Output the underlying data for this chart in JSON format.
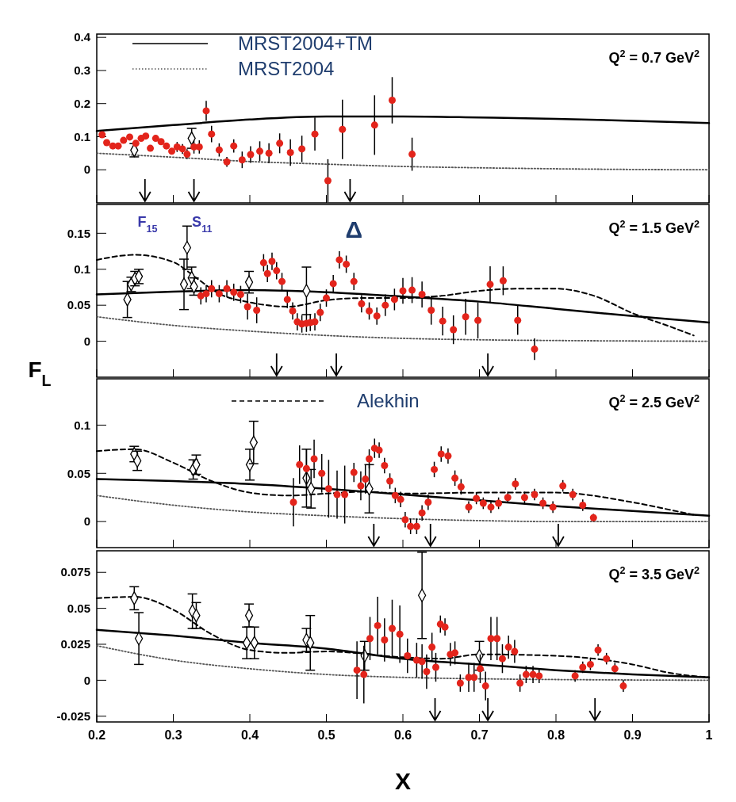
{
  "chart_data": [
    {
      "type": "scatter",
      "ylim": [
        -0.1,
        0.41
      ],
      "yticks": [
        0,
        0.1,
        0.2,
        0.3,
        0.4
      ],
      "xlim": [
        0.2,
        1
      ],
      "xticks": [
        0.2,
        0.3,
        0.4,
        0.5,
        0.6,
        0.7,
        0.8,
        0.9,
        1
      ],
      "tick_labels": "y",
      "legend": "top left",
      "annotations": [
        "Q$^{2}$ = 0.7 GeV$^{2}$"
      ],
      "ref_lines": [
        {
          "axis": "x",
          "value": 0.263
        },
        {
          "axis": "x",
          "value": 0.327
        },
        {
          "axis": "x",
          "value": 0.531
        }
      ],
      "series": [
        {
          "type": "line",
          "name": "MRST2004+TM",
          "color": "#000000",
          "line_style": "solid",
          "x": [
            0.2,
            0.3,
            0.4,
            0.5,
            0.6,
            0.7,
            0.8,
            0.9,
            1
          ],
          "values": [
            0.117,
            0.135,
            0.152,
            0.161,
            0.161,
            0.158,
            0.154,
            0.148,
            0.141
          ]
        },
        {
          "type": "line",
          "name": "MRST2004",
          "color": "#555555",
          "line_style": "dotted",
          "x": [
            0.2,
            0.3,
            0.4,
            0.5,
            0.6,
            0.7,
            0.8,
            0.9,
            1
          ],
          "values": [
            0.05,
            0.038,
            0.025,
            0.017,
            0.01,
            0.006,
            0.003,
            0.001,
            0
          ]
        },
        {
          "type": "scatter",
          "marker": "diamond",
          "color": "#000000",
          "x": [
            0.249,
            0.324
          ],
          "values": [
            0.059,
            0.095
          ],
          "errors": [
            0.02,
            0.03
          ]
        },
        {
          "type": "scatter",
          "marker": "circle",
          "color": "#e3241b",
          "x": [
            0.207,
            0.213,
            0.221,
            0.228,
            0.235,
            0.243,
            0.251,
            0.258,
            0.264,
            0.27,
            0.277,
            0.284,
            0.291,
            0.298,
            0.305,
            0.312,
            0.318,
            0.327,
            0.334,
            0.343,
            0.35,
            0.36,
            0.37,
            0.379,
            0.39,
            0.401,
            0.413,
            0.425,
            0.439,
            0.453,
            0.468,
            0.485,
            0.502,
            0.521,
            0.563,
            0.586,
            0.612
          ],
          "values": [
            0.106,
            0.082,
            0.072,
            0.072,
            0.089,
            0.099,
            0.08,
            0.095,
            0.102,
            0.065,
            0.095,
            0.085,
            0.072,
            0.056,
            0.069,
            0.063,
            0.047,
            0.069,
            0.069,
            0.178,
            0.108,
            0.06,
            0.024,
            0.072,
            0.03,
            0.046,
            0.056,
            0.05,
            0.08,
            0.052,
            0.063,
            0.108,
            -0.033,
            0.122,
            0.135,
            0.21,
            0.047
          ],
          "errors": [
            null,
            null,
            null,
            null,
            null,
            null,
            null,
            null,
            null,
            null,
            null,
            null,
            null,
            null,
            0.015,
            0.015,
            0.015,
            0.02,
            0.02,
            0.03,
            0.025,
            0.02,
            0.015,
            0.02,
            0.025,
            0.025,
            0.03,
            0.03,
            0.03,
            0.04,
            0.04,
            0.05,
            0.065,
            0.09,
            0.09,
            0.07,
            0.05
          ]
        }
      ]
    },
    {
      "type": "scatter",
      "ylim": [
        -0.05,
        0.19
      ],
      "yticks": [
        0,
        0.05,
        0.1,
        0.15
      ],
      "xlim": [
        0.2,
        1
      ],
      "xticks": [
        0.2,
        0.3,
        0.4,
        0.5,
        0.6,
        0.7,
        0.8,
        0.9,
        1
      ],
      "tick_labels": "y",
      "ylabel": "F$_{L}$",
      "annotations": [
        "Q$^{2}$ = 1.5 GeV$^{2}$",
        "F$_{15}$",
        "S$_{11}$",
        "Δ"
      ],
      "ref_lines": [
        {
          "axis": "x",
          "value": 0.435
        },
        {
          "axis": "x",
          "value": 0.513
        },
        {
          "axis": "x",
          "value": 0.711
        }
      ],
      "series": [
        {
          "type": "line",
          "color": "#000000",
          "line_style": "solid",
          "x": [
            0.2,
            0.3,
            0.4,
            0.5,
            0.6,
            0.7,
            0.8,
            0.9,
            1
          ],
          "values": [
            0.065,
            0.069,
            0.071,
            0.068,
            0.062,
            0.055,
            0.045,
            0.035,
            0.026
          ]
        },
        {
          "type": "line",
          "color": "#000000",
          "line_style": "dashed",
          "x": [
            0.2,
            0.25,
            0.3,
            0.33,
            0.36,
            0.4,
            0.45,
            0.5,
            0.55,
            0.6,
            0.65,
            0.7,
            0.75,
            0.8,
            0.85,
            0.9,
            0.95,
            0.98
          ],
          "values": [
            0.113,
            0.12,
            0.11,
            0.088,
            0.066,
            0.054,
            0.048,
            0.057,
            0.06,
            0.06,
            0.063,
            0.07,
            0.073,
            0.073,
            0.063,
            0.039,
            0.02,
            0.008
          ]
        },
        {
          "type": "line",
          "color": "#555555",
          "line_style": "dotted",
          "x": [
            0.2,
            0.3,
            0.4,
            0.5,
            0.6,
            0.7,
            0.8,
            1
          ],
          "values": [
            0.034,
            0.022,
            0.014,
            0.008,
            0.004,
            0.002,
            0.001,
            0
          ]
        },
        {
          "type": "scatter",
          "marker": "diamond",
          "color": "#000000",
          "x": [
            0.24,
            0.245,
            0.25,
            0.255,
            0.314,
            0.318,
            0.324,
            0.327,
            0.399,
            0.474
          ],
          "values": [
            0.058,
            0.079,
            0.087,
            0.09,
            0.079,
            0.13,
            0.088,
            0.076,
            0.082,
            0.07
          ],
          "errors": [
            0.025,
            0.01,
            0.01,
            0.01,
            0.035,
            0.03,
            0.015,
            0.012,
            0.015,
            0.033
          ]
        },
        {
          "type": "scatter",
          "marker": "circle",
          "color": "#e3241b",
          "x": [
            0.336,
            0.343,
            0.35,
            0.36,
            0.37,
            0.379,
            0.388,
            0.397,
            0.409,
            0.418,
            0.423,
            0.429,
            0.435,
            0.442,
            0.449,
            0.456,
            0.462,
            0.468,
            0.474,
            0.479,
            0.485,
            0.492,
            0.5,
            0.509,
            0.517,
            0.526,
            0.536,
            0.546,
            0.556,
            0.566,
            0.577,
            0.589,
            0.6,
            0.612,
            0.625,
            0.637,
            0.652,
            0.666,
            0.682,
            0.698,
            0.714,
            0.731,
            0.75,
            0.772
          ],
          "values": [
            0.063,
            0.066,
            0.073,
            0.066,
            0.073,
            0.068,
            0.065,
            0.048,
            0.043,
            0.109,
            0.094,
            0.111,
            0.098,
            0.083,
            0.058,
            0.042,
            0.027,
            0.024,
            0.025,
            0.026,
            0.027,
            0.04,
            0.06,
            0.08,
            0.113,
            0.107,
            0.083,
            0.052,
            0.042,
            0.035,
            0.05,
            0.058,
            0.07,
            0.071,
            0.065,
            0.043,
            0.028,
            0.016,
            0.034,
            0.029,
            0.079,
            0.084,
            0.029,
            -0.011
          ],
          "errors": [
            0.012,
            0.012,
            0.012,
            0.012,
            0.012,
            0.012,
            0.012,
            0.018,
            0.018,
            0.012,
            0.012,
            0.012,
            0.012,
            0.012,
            0.012,
            0.012,
            0.012,
            0.012,
            0.012,
            0.012,
            0.012,
            0.012,
            0.012,
            0.012,
            0.012,
            0.012,
            0.012,
            0.012,
            0.012,
            0.012,
            0.015,
            0.015,
            0.018,
            0.018,
            0.018,
            0.02,
            0.02,
            0.02,
            0.025,
            0.025,
            0.025,
            0.02,
            0.02,
            0.015
          ]
        }
      ]
    },
    {
      "type": "scatter",
      "ylim": [
        -0.027,
        0.148
      ],
      "yticks": [
        0,
        0.05,
        0.1
      ],
      "xlim": [
        0.2,
        1
      ],
      "xticks": [
        0.2,
        0.3,
        0.4,
        0.5,
        0.6,
        0.7,
        0.8,
        0.9,
        1
      ],
      "tick_labels": "y",
      "legend": "top",
      "annotations": [
        "Q$^{2}$ = 2.5 GeV$^{2}$"
      ],
      "ref_lines": [
        {
          "axis": "x",
          "value": 0.562
        },
        {
          "axis": "x",
          "value": 0.636
        },
        {
          "axis": "x",
          "value": 0.803
        }
      ],
      "series": [
        {
          "type": "line",
          "color": "#000000",
          "line_style": "solid",
          "x": [
            0.2,
            0.3,
            0.4,
            0.5,
            0.6,
            0.7,
            0.8,
            0.9,
            1
          ],
          "values": [
            0.044,
            0.042,
            0.039,
            0.034,
            0.028,
            0.022,
            0.016,
            0.011,
            0.006
          ]
        },
        {
          "type": "line",
          "name": "Alekhin",
          "color": "#000000",
          "line_style": "dashed",
          "x": [
            0.2,
            0.25,
            0.3,
            0.35,
            0.4,
            0.45,
            0.5,
            0.55,
            0.6,
            0.7,
            0.8,
            0.9,
            0.95,
            0.98
          ],
          "values": [
            0.073,
            0.075,
            0.061,
            0.042,
            0.03,
            0.027,
            0.029,
            0.031,
            0.029,
            0.03,
            0.03,
            0.02,
            0.012,
            0.007
          ]
        },
        {
          "type": "line",
          "color": "#555555",
          "line_style": "dotted",
          "x": [
            0.2,
            0.3,
            0.4,
            0.5,
            0.6,
            0.7,
            0.8,
            1
          ],
          "values": [
            0.027,
            0.017,
            0.01,
            0.006,
            0.003,
            0.001,
            0,
            0
          ]
        },
        {
          "type": "scatter",
          "marker": "diamond",
          "color": "#000000",
          "x": [
            0.249,
            0.253,
            0.326,
            0.33,
            0.4,
            0.405,
            0.474,
            0.48,
            0.556
          ],
          "values": [
            0.07,
            0.063,
            0.054,
            0.059,
            0.059,
            0.082,
            0.045,
            0.034,
            0.034
          ],
          "errors": [
            0.008,
            0.01,
            0.01,
            0.01,
            0.016,
            0.022,
            0.03,
            0.02,
            0.025
          ]
        },
        {
          "type": "scatter",
          "marker": "circle",
          "color": "#e3241b",
          "x": [
            0.457,
            0.465,
            0.474,
            0.484,
            0.494,
            0.503,
            0.514,
            0.524,
            0.536,
            0.545,
            0.551,
            0.556,
            0.563,
            0.569,
            0.576,
            0.583,
            0.59,
            0.597,
            0.603,
            0.61,
            0.618,
            0.625,
            0.633,
            0.641,
            0.65,
            0.659,
            0.668,
            0.676,
            0.686,
            0.696,
            0.705,
            0.715,
            0.725,
            0.737,
            0.747,
            0.759,
            0.772,
            0.783,
            0.796,
            0.809,
            0.822,
            0.835,
            0.849
          ],
          "values": [
            0.02,
            0.059,
            0.055,
            0.065,
            0.05,
            0.034,
            0.028,
            0.028,
            0.051,
            0.037,
            0.044,
            0.065,
            0.076,
            0.074,
            0.058,
            0.042,
            0.027,
            0.023,
            0.002,
            -0.005,
            -0.005,
            0.009,
            0.02,
            0.054,
            0.07,
            0.068,
            0.045,
            0.036,
            0.015,
            0.024,
            0.019,
            0.015,
            0.019,
            0.025,
            0.039,
            0.025,
            0.028,
            0.019,
            0.015,
            0.037,
            0.028,
            0.017,
            0.004
          ],
          "errors": [
            0.025,
            0.02,
            0.02,
            0.02,
            0.02,
            0.03,
            0.025,
            0.03,
            0.01,
            0.015,
            0.015,
            0.01,
            0.01,
            0.008,
            0.008,
            0.008,
            0.008,
            0.008,
            0.008,
            0.008,
            0.008,
            0.008,
            0.008,
            0.008,
            0.008,
            0.008,
            0.008,
            0.008,
            0.006,
            0.006,
            0.006,
            0.006,
            0.006,
            0.006,
            0.006,
            0.006,
            0.006,
            0.006,
            0.006,
            0.006,
            0.006,
            0.006,
            0.004
          ]
        }
      ]
    },
    {
      "type": "scatter",
      "ylim": [
        -0.029,
        0.09
      ],
      "yticks": [
        -0.025,
        0,
        0.025,
        0.05,
        0.075
      ],
      "xlim": [
        0.2,
        1
      ],
      "xticks": [
        0.2,
        0.3,
        0.4,
        0.5,
        0.6,
        0.7,
        0.8,
        0.9,
        1
      ],
      "xlabel": "X",
      "annotations": [
        "Q$^{2}$ = 3.5 GeV$^{2}$"
      ],
      "ref_lines": [
        {
          "axis": "x",
          "value": 0.642
        },
        {
          "axis": "x",
          "value": 0.711
        },
        {
          "axis": "x",
          "value": 0.851
        }
      ],
      "series": [
        {
          "type": "line",
          "color": "#000000",
          "line_style": "solid",
          "x": [
            0.2,
            0.3,
            0.4,
            0.5,
            0.6,
            0.7,
            0.8,
            0.9,
            1
          ],
          "values": [
            0.035,
            0.031,
            0.026,
            0.022,
            0.015,
            0.011,
            0.007,
            0.004,
            0.002
          ]
        },
        {
          "type": "line",
          "color": "#000000",
          "line_style": "dashed",
          "x": [
            0.2,
            0.25,
            0.3,
            0.35,
            0.4,
            0.45,
            0.5,
            0.6,
            0.65,
            0.7,
            0.8,
            0.9,
            0.95,
            1
          ],
          "values": [
            0.057,
            0.058,
            0.049,
            0.032,
            0.021,
            0.019,
            0.02,
            0.016,
            0.015,
            0.018,
            0.017,
            0.011,
            0.005,
            0.002
          ]
        },
        {
          "type": "line",
          "color": "#555555",
          "line_style": "dotted",
          "x": [
            0.2,
            0.3,
            0.4,
            0.5,
            0.6,
            0.7,
            1
          ],
          "values": [
            0.024,
            0.014,
            0.008,
            0.004,
            0.002,
            0.001,
            0
          ]
        },
        {
          "type": "scatter",
          "marker": "diamond",
          "color": "#000000",
          "x": [
            0.249,
            0.255,
            0.325,
            0.33,
            0.396,
            0.399,
            0.406,
            0.474,
            0.479,
            0.55,
            0.625,
            0.7
          ],
          "values": [
            0.057,
            0.029,
            0.048,
            0.045,
            0.026,
            0.045,
            0.026,
            0.028,
            0.026,
            0.017,
            0.059,
            0.017
          ],
          "errors": [
            0.008,
            0.018,
            0.012,
            0.009,
            0.011,
            0.008,
            0.011,
            0.008,
            0.019,
            0.01,
            0.03,
            0.01
          ]
        },
        {
          "type": "scatter",
          "marker": "circle",
          "color": "#e3241b",
          "x": [
            0.54,
            0.549,
            0.557,
            0.567,
            0.576,
            0.586,
            0.596,
            0.606,
            0.618,
            0.625,
            0.631,
            0.638,
            0.643,
            0.649,
            0.655,
            0.662,
            0.668,
            0.675,
            0.686,
            0.693,
            0.701,
            0.708,
            0.715,
            0.723,
            0.73,
            0.738,
            0.746,
            0.753,
            0.761,
            0.77,
            0.778,
            0.825,
            0.835,
            0.845,
            0.855,
            0.866,
            0.877,
            0.888
          ],
          "values": [
            0.007,
            0.004,
            0.029,
            0.038,
            0.028,
            0.036,
            0.032,
            0.017,
            0.014,
            0.013,
            0.006,
            0.023,
            0.009,
            0.039,
            0.037,
            0.018,
            0.019,
            -0.002,
            0.002,
            0.002,
            0.008,
            -0.004,
            0.029,
            0.029,
            0.015,
            0.023,
            0.02,
            -0.002,
            0.004,
            0.004,
            0.003,
            0.003,
            0.009,
            0.011,
            0.021,
            0.015,
            0.008,
            -0.004
          ],
          "errors": [
            0.02,
            0.02,
            0.015,
            0.02,
            0.015,
            0.02,
            0.02,
            0.012,
            0.012,
            0.012,
            0.012,
            0.01,
            0.01,
            0.006,
            0.006,
            0.008,
            0.008,
            0.006,
            0.01,
            0.01,
            0.01,
            0.01,
            0.015,
            0.015,
            0.01,
            0.008,
            0.008,
            0.006,
            0.006,
            0.006,
            0.005,
            0.004,
            0.004,
            0.004,
            0.004,
            0.004,
            0.004,
            0.004
          ]
        }
      ]
    }
  ]
}
